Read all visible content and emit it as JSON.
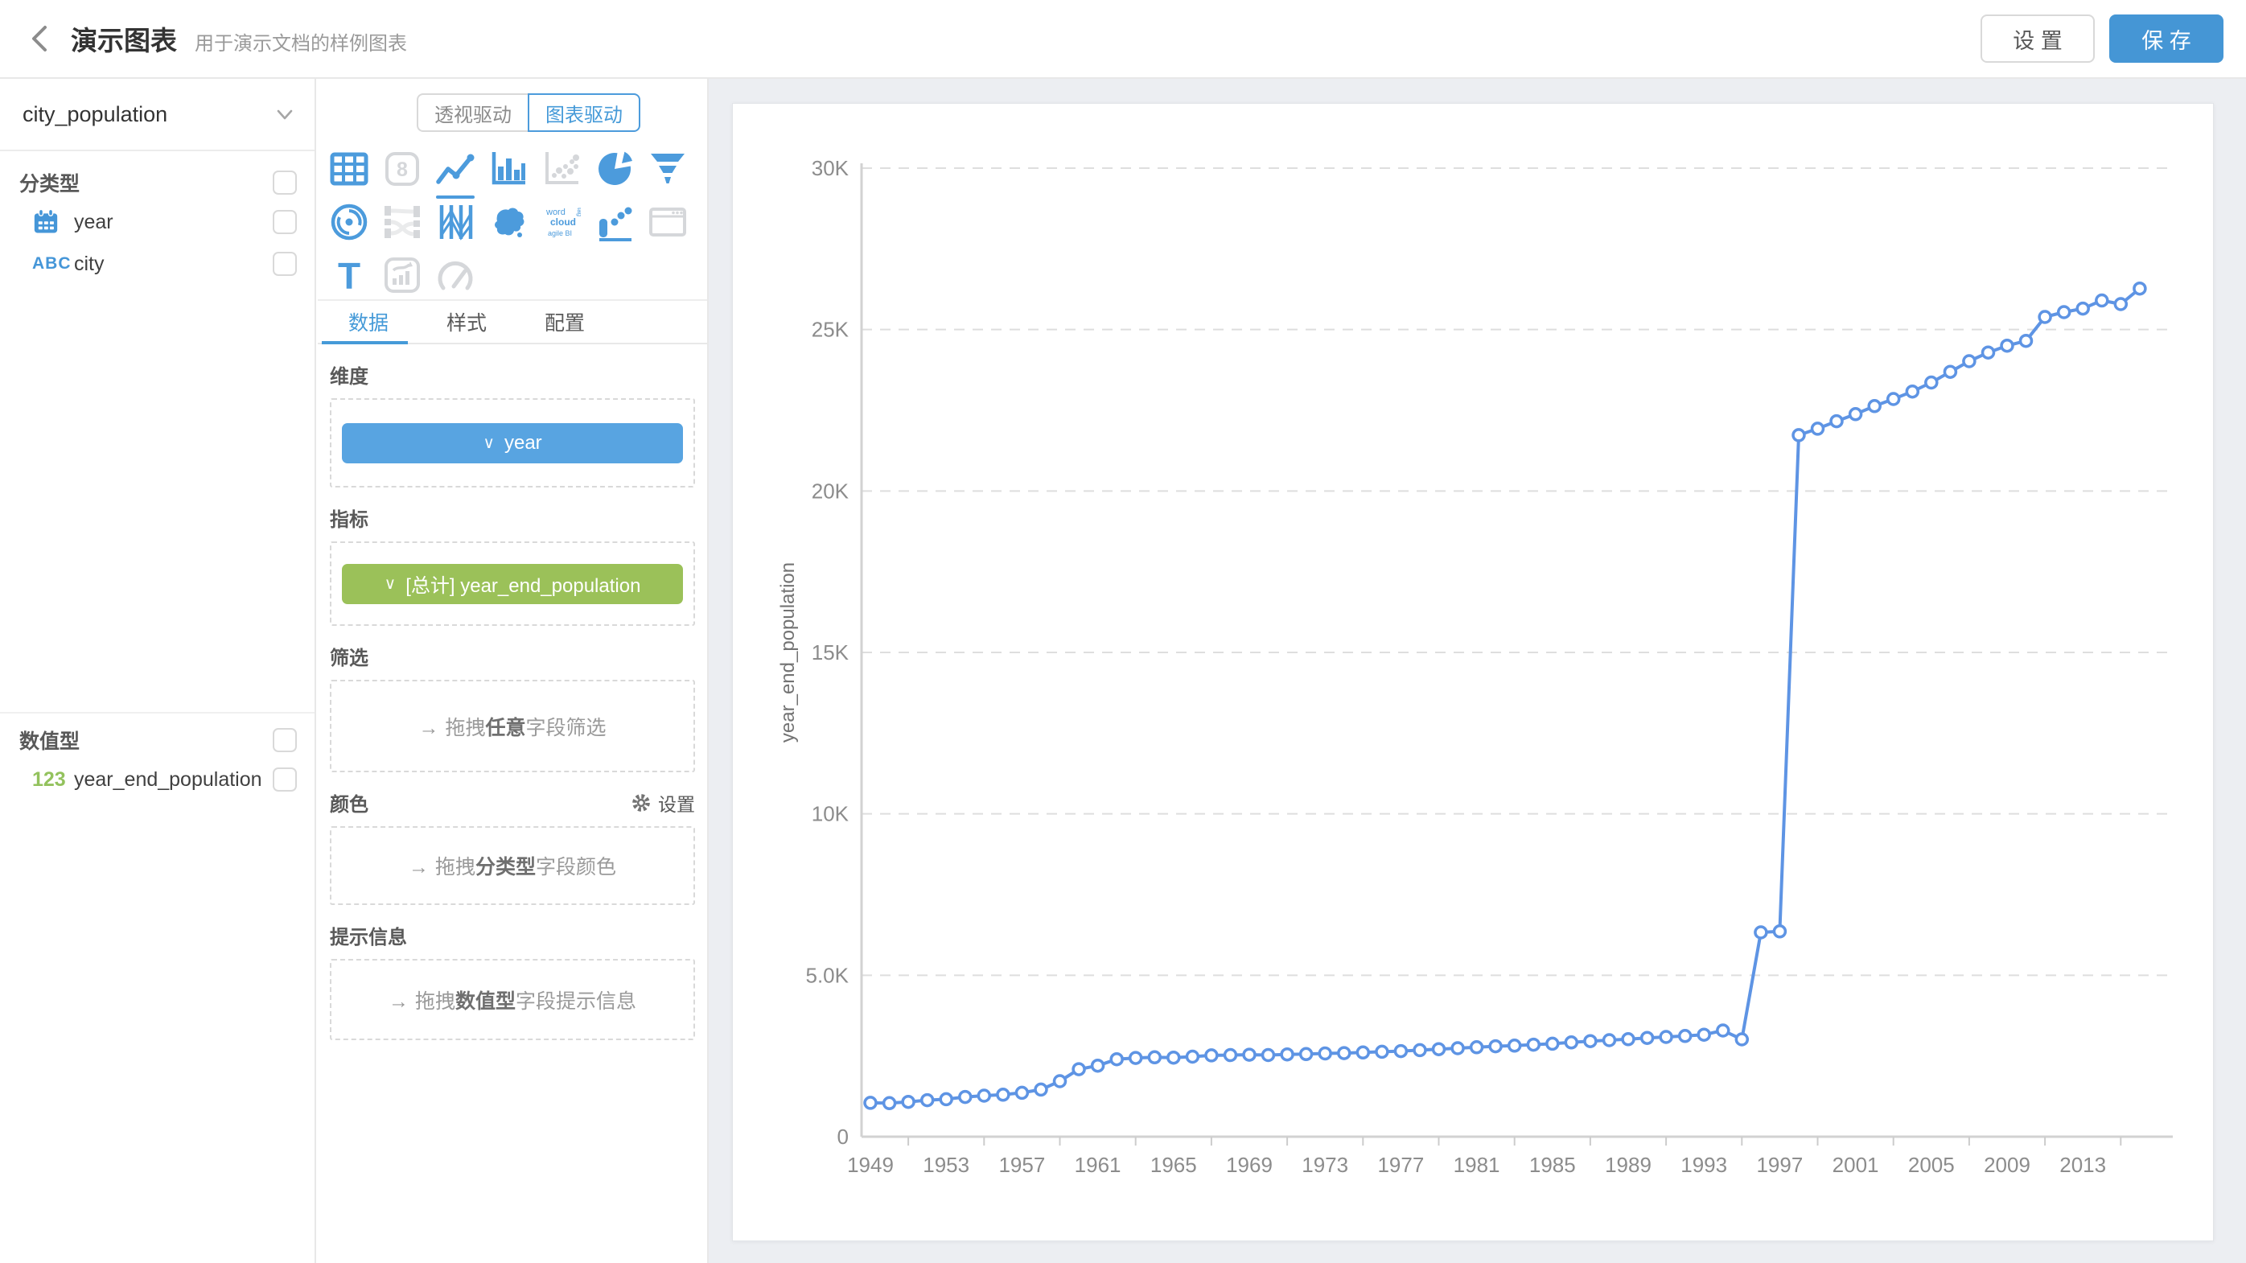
{
  "header": {
    "title": "演示图表",
    "subtitle": "用于演示文档的样例图表",
    "settings_label": "设 置",
    "save_label": "保 存"
  },
  "sidebar": {
    "dataset_select": {
      "value": "city_population"
    },
    "groups": [
      {
        "label": "分类型",
        "fields": [
          {
            "icon": "calendar",
            "name": "year"
          },
          {
            "icon": "abc",
            "icon_text": "ABC",
            "name": "city"
          }
        ]
      },
      {
        "label": "数值型",
        "fields": [
          {
            "icon": "123",
            "icon_text": "123",
            "name": "year_end_population"
          }
        ]
      }
    ]
  },
  "panel": {
    "mode_tabs": [
      {
        "label": "透视驱动",
        "active": false
      },
      {
        "label": "图表驱动",
        "active": true
      }
    ],
    "chart_types": [
      {
        "name": "table",
        "enabled": true,
        "selected": false
      },
      {
        "name": "scorecard",
        "enabled": false,
        "selected": false
      },
      {
        "name": "line",
        "enabled": true,
        "selected": true
      },
      {
        "name": "bar",
        "enabled": true,
        "selected": false
      },
      {
        "name": "scatter",
        "enabled": false,
        "selected": false
      },
      {
        "name": "pie",
        "enabled": true,
        "selected": false
      },
      {
        "name": "funnel",
        "enabled": true,
        "selected": false
      },
      {
        "name": "radar",
        "enabled": true,
        "selected": false
      },
      {
        "name": "sankey",
        "enabled": false,
        "selected": false
      },
      {
        "name": "parallel",
        "enabled": true,
        "selected": false
      },
      {
        "name": "map",
        "enabled": true,
        "selected": false
      },
      {
        "name": "wordcloud",
        "enabled": true,
        "selected": false
      },
      {
        "name": "combo",
        "enabled": true,
        "selected": false
      },
      {
        "name": "iframe",
        "enabled": false,
        "selected": false
      },
      {
        "name": "text",
        "enabled": true,
        "selected": false
      },
      {
        "name": "richtext",
        "enabled": false,
        "selected": false
      },
      {
        "name": "gauge",
        "enabled": false,
        "selected": false
      }
    ],
    "tabs": [
      {
        "label": "数据",
        "active": true
      },
      {
        "label": "样式",
        "active": false
      },
      {
        "label": "配置",
        "active": false
      }
    ],
    "sections": {
      "dimension": {
        "label": "维度",
        "chip": "year",
        "chip_caret": "∨",
        "chip_color": "#58a4e1"
      },
      "metric": {
        "label": "指标",
        "chip": "[总计] year_end_population",
        "chip_caret": "∨",
        "chip_color": "#9bc159"
      },
      "filter": {
        "label": "筛选",
        "arrow": "→",
        "text_prefix": "拖拽",
        "text_bold": "任意",
        "text_suffix": "字段筛选"
      },
      "color": {
        "label": "颜色",
        "action": "设置",
        "arrow": "→",
        "text_prefix": "拖拽",
        "text_bold": "分类型",
        "text_suffix": "字段颜色"
      },
      "tooltip": {
        "label": "提示信息",
        "arrow": "→",
        "text_prefix": "拖拽",
        "text_bold": "数值型",
        "text_suffix": "字段提示信息"
      }
    }
  },
  "chart_data": {
    "type": "line",
    "title": "",
    "xlabel": "",
    "ylabel": "year_end_population",
    "ylim": [
      0,
      30000
    ],
    "grid": "dashed-horizontal",
    "legend": "none",
    "line_color": "#5e94e4",
    "marker": "hollow-circle",
    "y_ticks": [
      {
        "label": "0",
        "value": 0
      },
      {
        "label": "5.0K",
        "value": 5000
      },
      {
        "label": "10K",
        "value": 10000
      },
      {
        "label": "15K",
        "value": 15000
      },
      {
        "label": "20K",
        "value": 20000
      },
      {
        "label": "25K",
        "value": 25000
      },
      {
        "label": "30K",
        "value": 30000
      }
    ],
    "x_tick_labels": [
      "1949",
      "1953",
      "1957",
      "1961",
      "1965",
      "1969",
      "1973",
      "1977",
      "1981",
      "1985",
      "1989",
      "1993",
      "1997",
      "2001",
      "2005",
      "2009",
      "2013"
    ],
    "x": [
      1949,
      1950,
      1951,
      1952,
      1953,
      1954,
      1955,
      1956,
      1957,
      1958,
      1959,
      1960,
      1961,
      1962,
      1963,
      1964,
      1965,
      1966,
      1967,
      1968,
      1969,
      1970,
      1971,
      1972,
      1973,
      1974,
      1975,
      1976,
      1977,
      1978,
      1979,
      1980,
      1981,
      1982,
      1983,
      1984,
      1985,
      1986,
      1987,
      1988,
      1989,
      1990,
      1991,
      1992,
      1993,
      1994,
      1995,
      1996,
      1997,
      1998,
      1999,
      2000,
      2001,
      2002,
      2003,
      2004,
      2005,
      2006,
      2007,
      2008,
      2009,
      2010,
      2011,
      2012,
      2013,
      2014,
      2015,
      2016
    ],
    "values": [
      1050,
      1040,
      1080,
      1130,
      1160,
      1230,
      1270,
      1300,
      1360,
      1460,
      1720,
      2090,
      2200,
      2400,
      2440,
      2460,
      2450,
      2480,
      2520,
      2530,
      2540,
      2530,
      2550,
      2560,
      2580,
      2590,
      2610,
      2630,
      2650,
      2680,
      2710,
      2740,
      2770,
      2800,
      2820,
      2850,
      2880,
      2920,
      2960,
      2990,
      3020,
      3060,
      3090,
      3120,
      3160,
      3290,
      3015,
      6330,
      6360,
      21730,
      21930,
      22160,
      22380,
      22630,
      22850,
      23080,
      23360,
      23690,
      24020,
      24290,
      24500,
      24650,
      25390,
      25540,
      25650,
      25900,
      25790,
      26270
    ]
  }
}
